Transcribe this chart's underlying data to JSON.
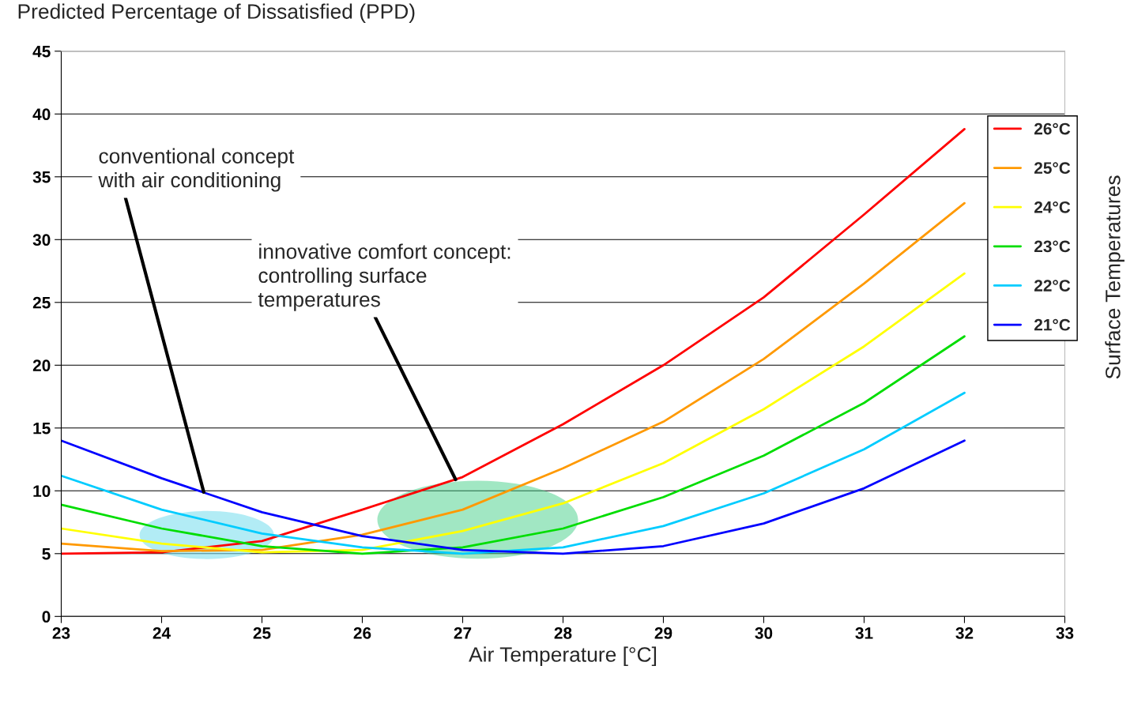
{
  "chart_data": {
    "type": "line",
    "title": "Predicted Percentage of Dissatisfied (PPD)",
    "xlabel": "Air Temperature [°C]",
    "legend_title": "Surface Temperatures",
    "x": [
      23,
      24,
      25,
      26,
      27,
      28,
      29,
      30,
      31,
      32
    ],
    "series": [
      {
        "name": "26°C",
        "color": "#ff0000",
        "values": [
          5.0,
          5.1,
          6.0,
          8.5,
          11.1,
          15.3,
          20.0,
          25.4,
          32.0,
          38.8
        ]
      },
      {
        "name": "25°C",
        "color": "#ff9900",
        "values": [
          5.8,
          5.2,
          5.3,
          6.5,
          8.5,
          11.8,
          15.5,
          20.5,
          26.5,
          32.9
        ]
      },
      {
        "name": "24°C",
        "color": "#ffff00",
        "values": [
          7.0,
          5.8,
          5.1,
          5.3,
          6.8,
          9.0,
          12.2,
          16.5,
          21.5,
          27.3
        ]
      },
      {
        "name": "23°C",
        "color": "#00dd00",
        "values": [
          8.9,
          7.0,
          5.6,
          5.0,
          5.5,
          7.0,
          9.5,
          12.8,
          17.0,
          22.3
        ]
      },
      {
        "name": "22°C",
        "color": "#00ccff",
        "values": [
          11.2,
          8.5,
          6.6,
          5.5,
          5.0,
          5.5,
          7.2,
          9.8,
          13.3,
          17.8
        ]
      },
      {
        "name": "21°C",
        "color": "#0000ff",
        "values": [
          14.0,
          11.0,
          8.3,
          6.4,
          5.3,
          5.0,
          5.6,
          7.4,
          10.2,
          14.0
        ]
      }
    ],
    "xlim": [
      23,
      33
    ],
    "xticks": [
      23,
      24,
      25,
      26,
      27,
      28,
      29,
      30,
      31,
      32,
      33
    ],
    "ylim": [
      0,
      45
    ],
    "yticks": [
      0,
      5,
      10,
      15,
      20,
      25,
      30,
      35,
      40,
      45
    ],
    "grid": "y",
    "legend": "right",
    "marker": "none",
    "line_style": "solid",
    "annotations": [
      {
        "text": "conventional concept\nwith air conditioning",
        "x": 24.42,
        "y": 9.9
      },
      {
        "text": "innovative comfort concept:\ncontrolling surface\ntemperatures",
        "x": 26.93,
        "y": 10.9
      }
    ]
  }
}
